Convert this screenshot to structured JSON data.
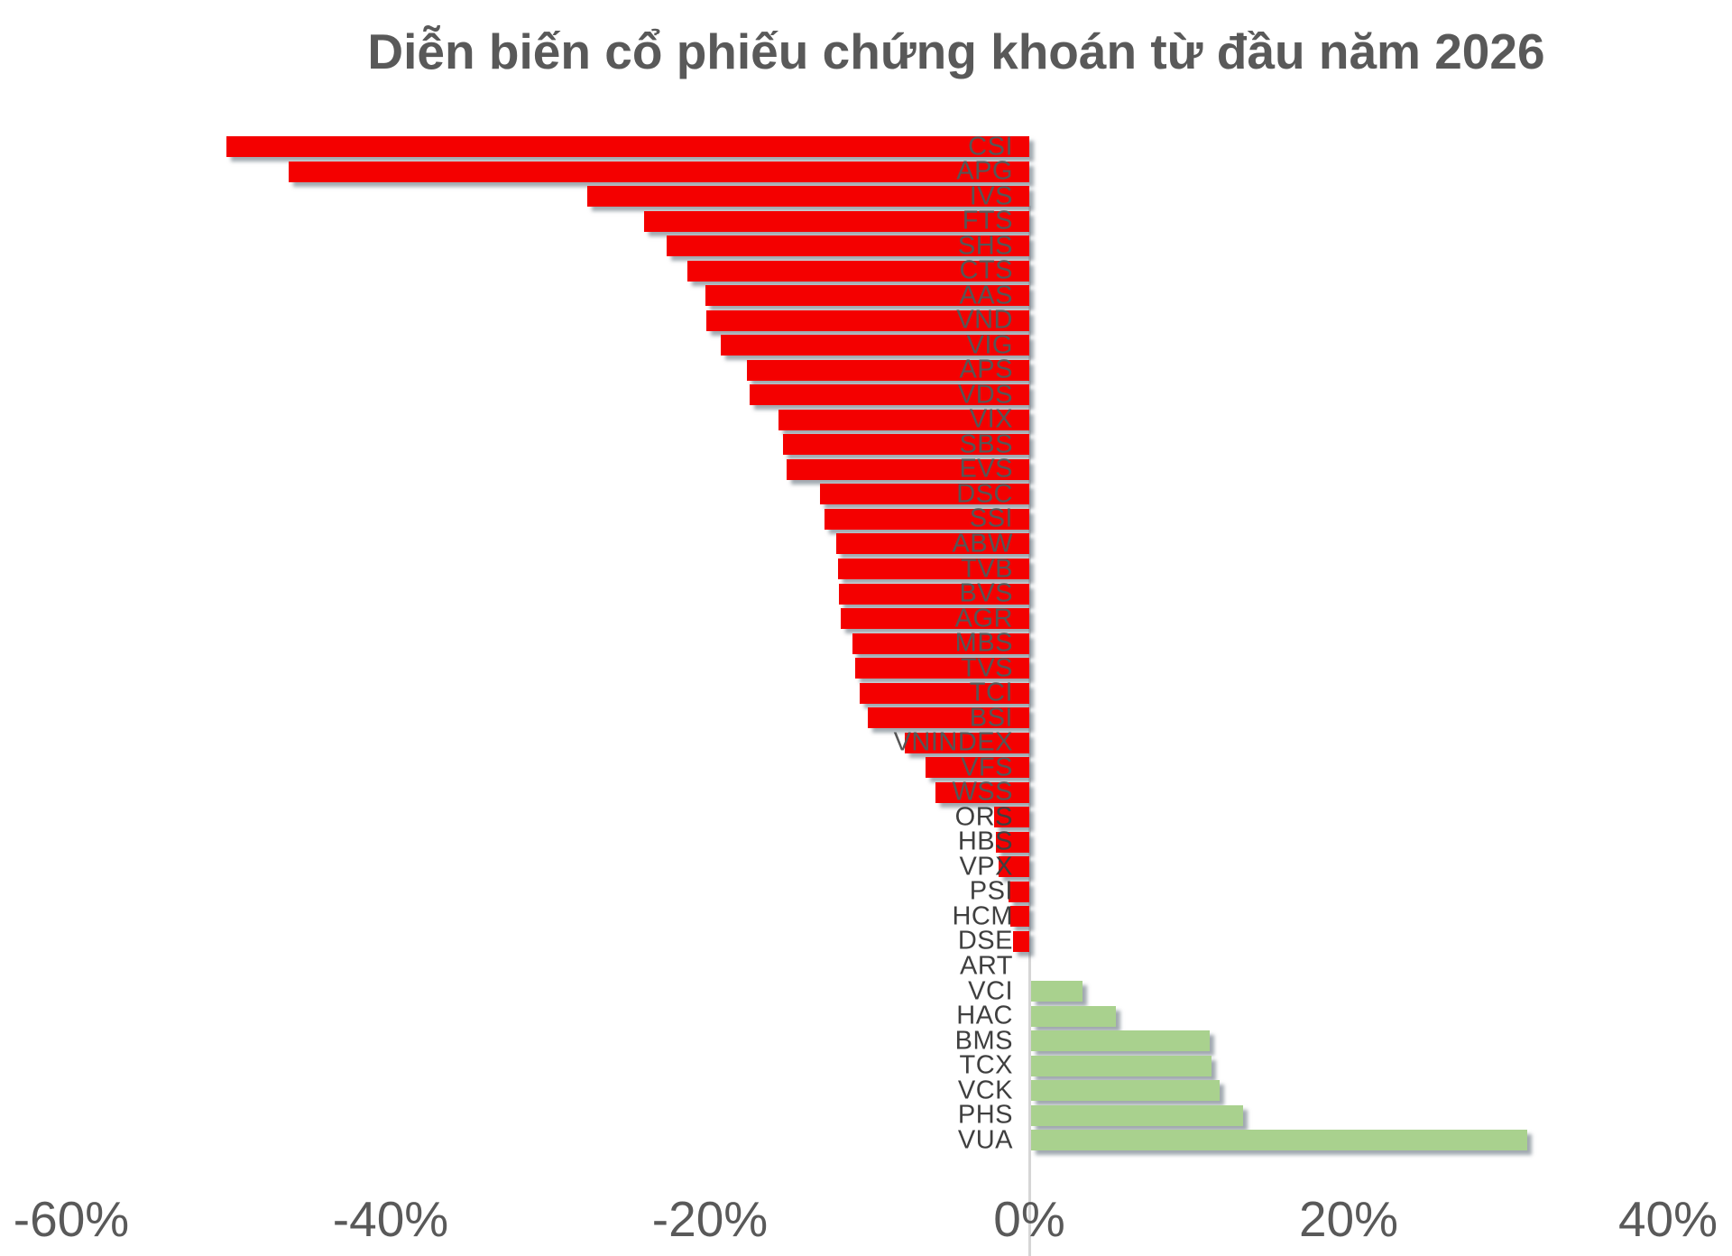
{
  "title": "Diễn biến cổ phiếu chứng khoán từ đầu năm 2026",
  "colors": {
    "negative_bar": "#f40000",
    "positive_bar": "#a9d18e",
    "zero_axis_line": "#d6d6d6",
    "title_text": "#595959",
    "tick_text": "#595959",
    "bar_label_text": "#4a4a4a"
  },
  "chart_data": {
    "type": "bar",
    "orientation": "horizontal",
    "title": "Diễn biến cổ phiếu chứng khoán từ đầu năm 2026",
    "xlabel": "",
    "ylabel": "",
    "unit": "%",
    "xlim": [
      -64,
      44
    ],
    "grid": false,
    "legend": "none",
    "x_ticks": [
      {
        "label": "-60%",
        "value": -60
      },
      {
        "label": "-40%",
        "value": -40
      },
      {
        "label": "-20%",
        "value": -20
      },
      {
        "label": "0%",
        "value": 0
      },
      {
        "label": "20%",
        "value": 20
      },
      {
        "label": "40%",
        "value": 40
      }
    ],
    "categories": [
      "CSI",
      "APG",
      "IVS",
      "FTS",
      "SHS",
      "CTS",
      "AAS",
      "VND",
      "VIG",
      "APS",
      "VDS",
      "VIX",
      "SBS",
      "EVS",
      "DSC",
      "SSI",
      "ABW",
      "TVB",
      "BVS",
      "AGR",
      "MBS",
      "TVS",
      "TCI",
      "BSI",
      "VNINDEX",
      "VFS",
      "WSS",
      "ORS",
      "HBS",
      "VPX",
      "PSI",
      "HCM",
      "DSE",
      "ART",
      "VCI",
      "HAC",
      "BMS",
      "TCX",
      "VCK",
      "PHS",
      "VUA"
    ],
    "values": [
      -50.3,
      -46.4,
      -27.7,
      -24.1,
      -22.7,
      -21.4,
      -20.3,
      -20.2,
      -19.3,
      -17.7,
      -17.5,
      -15.7,
      -15.4,
      -15.2,
      -13.1,
      -12.8,
      -12.1,
      -12.0,
      -11.9,
      -11.8,
      -11.1,
      -10.9,
      -10.6,
      -10.1,
      -7.8,
      -6.5,
      -5.9,
      -2.2,
      -2.1,
      -1.9,
      -1.3,
      -1.2,
      -1.0,
      0.0,
      3.2,
      5.3,
      11.2,
      11.3,
      11.8,
      13.3,
      31.1
    ]
  }
}
